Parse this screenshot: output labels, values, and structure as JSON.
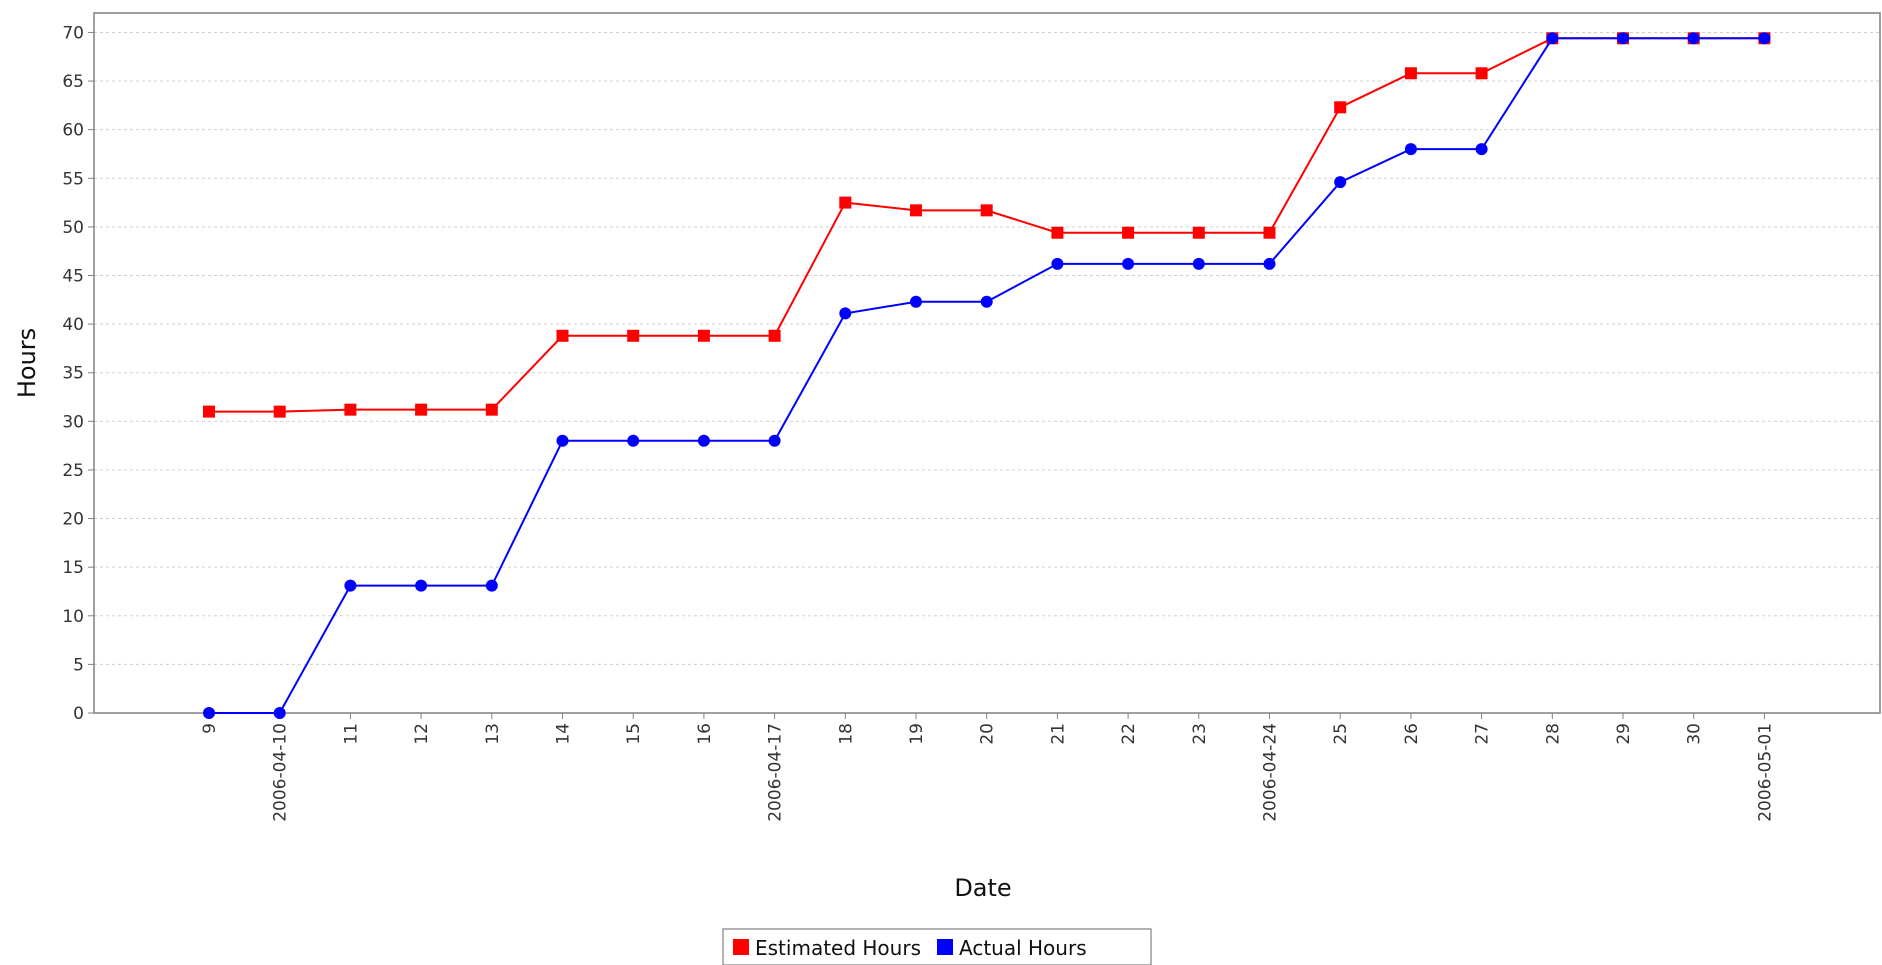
{
  "chart_data": {
    "type": "line",
    "title": "",
    "xlabel": "Date",
    "ylabel": "Hours",
    "ylim": [
      0,
      72
    ],
    "yticks": [
      0,
      5,
      10,
      15,
      20,
      25,
      30,
      35,
      40,
      45,
      50,
      55,
      60,
      65,
      70
    ],
    "grid": true,
    "legend_position": "bottom-center",
    "categories": [
      "9",
      "2006-04-10",
      "11",
      "12",
      "13",
      "14",
      "15",
      "16",
      "2006-04-17",
      "18",
      "19",
      "20",
      "21",
      "22",
      "23",
      "2006-04-24",
      "25",
      "26",
      "27",
      "28",
      "29",
      "30",
      "2006-05-01"
    ],
    "series": [
      {
        "name": "Estimated Hours",
        "color": "#ff0000",
        "marker": "square",
        "values": [
          31,
          31,
          31.2,
          31.2,
          31.2,
          38.8,
          38.8,
          38.8,
          38.8,
          52.5,
          51.7,
          51.7,
          49.4,
          49.4,
          49.4,
          49.4,
          62.3,
          65.8,
          65.8,
          69.4,
          69.4,
          69.4,
          69.4
        ]
      },
      {
        "name": "Actual Hours",
        "color": "#0000ff",
        "marker": "circle",
        "values": [
          0,
          0,
          13.1,
          13.1,
          13.1,
          28,
          28,
          28,
          28,
          41.1,
          42.3,
          42.3,
          46.2,
          46.2,
          46.2,
          46.2,
          54.6,
          58,
          58,
          69.4,
          69.4,
          69.4,
          69.4
        ]
      }
    ]
  }
}
